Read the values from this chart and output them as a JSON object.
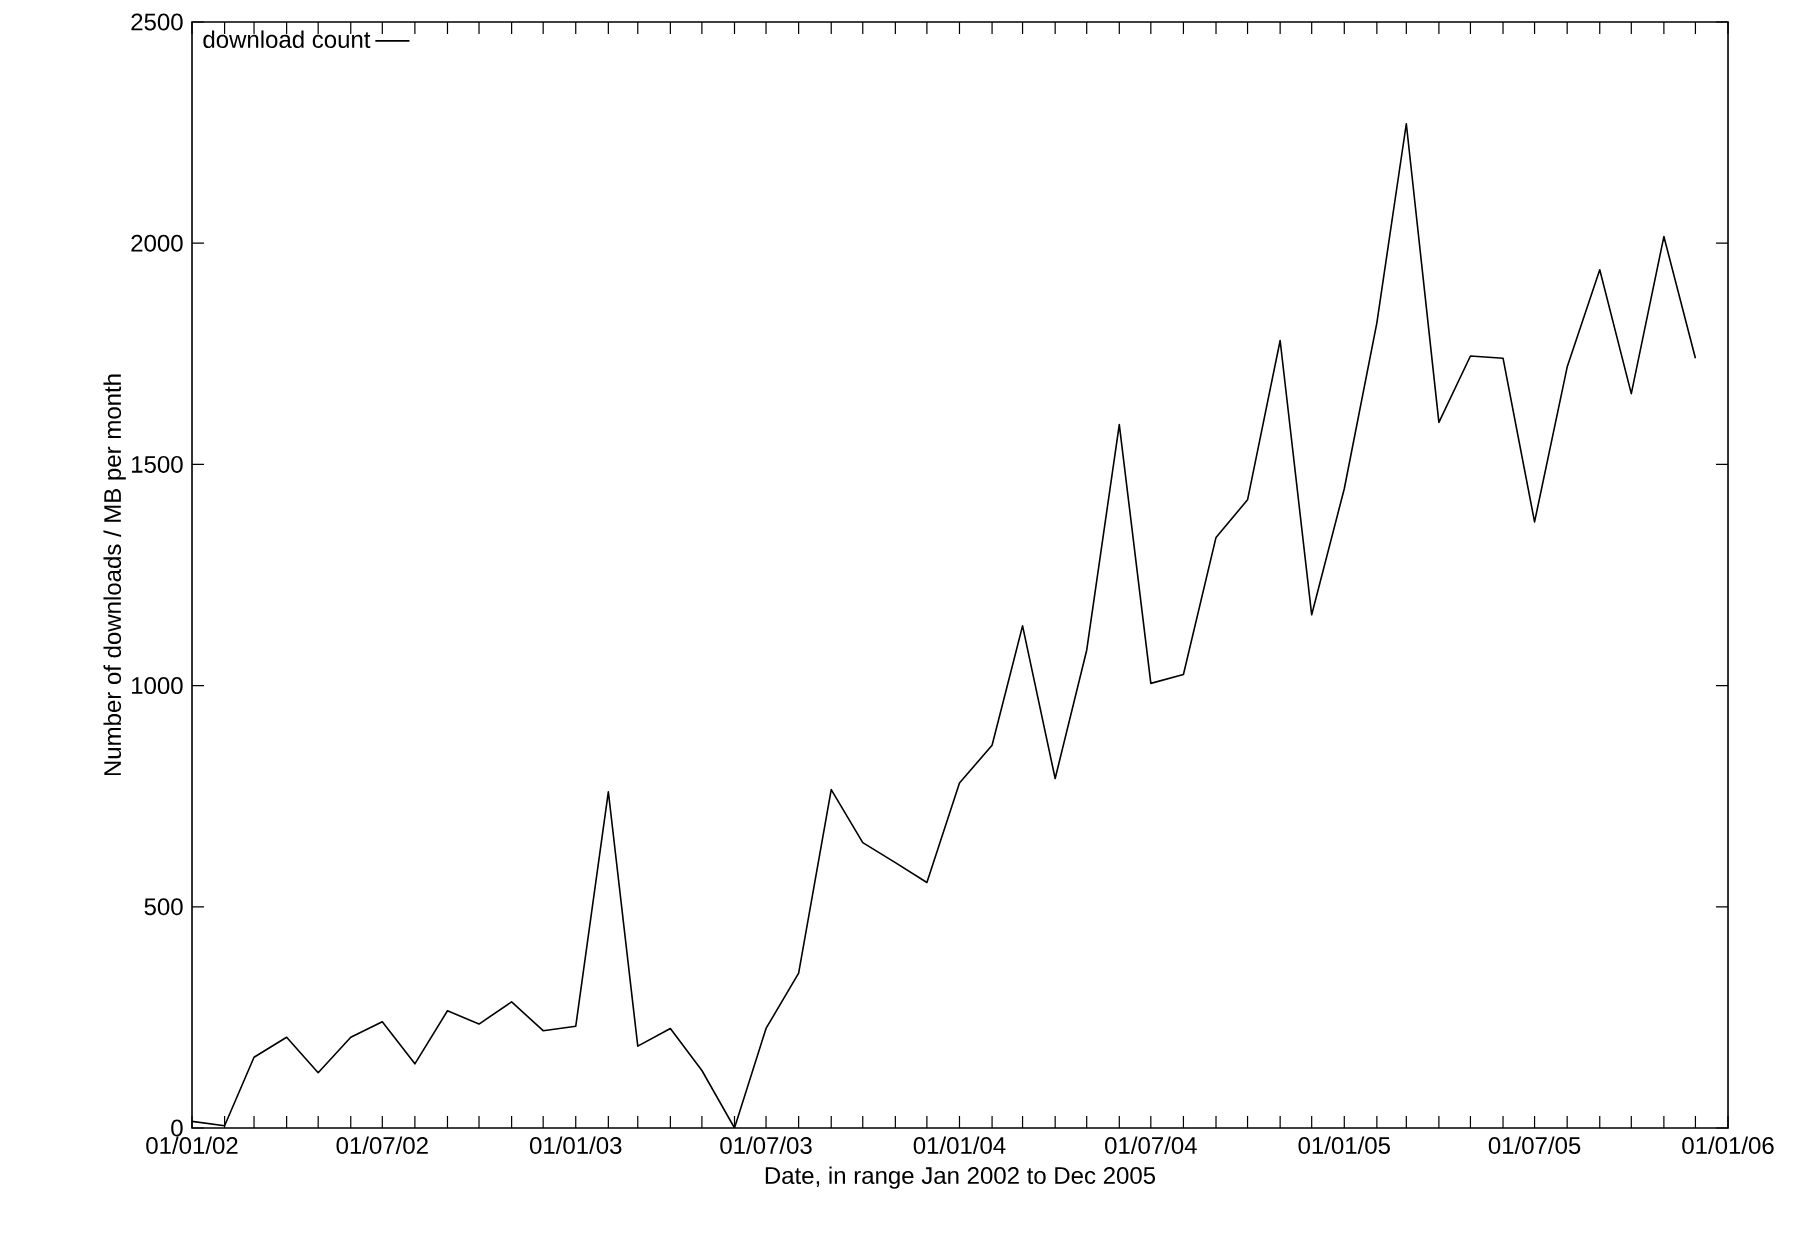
{
  "chart_data": {
    "type": "line",
    "xlabel": "Date, in range Jan 2002 to Dec 2005",
    "ylabel": "Number of downloads / MB per month",
    "x": [
      "2002-01",
      "2002-02",
      "2002-03",
      "2002-04",
      "2002-05",
      "2002-06",
      "2002-07",
      "2002-08",
      "2002-09",
      "2002-10",
      "2002-11",
      "2002-12",
      "2003-01",
      "2003-02",
      "2003-03",
      "2003-04",
      "2003-05",
      "2003-06",
      "2003-07",
      "2003-08",
      "2003-09",
      "2003-10",
      "2003-11",
      "2003-12",
      "2004-01",
      "2004-02",
      "2004-03",
      "2004-04",
      "2004-05",
      "2004-06",
      "2004-07",
      "2004-08",
      "2004-09",
      "2004-10",
      "2004-11",
      "2004-12",
      "2005-01",
      "2005-02",
      "2005-03",
      "2005-04",
      "2005-05",
      "2005-06",
      "2005-07",
      "2005-08",
      "2005-09",
      "2005-10",
      "2005-11",
      "2005-12"
    ],
    "series": [
      {
        "name": "download count",
        "color": "#000000",
        "values": [
          15,
          5,
          160,
          205,
          125,
          205,
          240,
          145,
          265,
          235,
          285,
          220,
          230,
          760,
          185,
          225,
          130,
          0,
          225,
          350,
          765,
          645,
          600,
          555,
          780,
          865,
          1135,
          790,
          1080,
          1590,
          1005,
          1025,
          1335,
          1420,
          1780,
          1160,
          1445,
          1820,
          2270,
          1595,
          1745,
          1740,
          1370,
          1720,
          1940,
          1660,
          2015,
          1740
        ]
      }
    ],
    "xlim": [
      "2002-01",
      "2006-01"
    ],
    "xticks": [
      {
        "value": "2002-01",
        "label": "01/01/02"
      },
      {
        "value": "2002-02",
        "label": null
      },
      {
        "value": "2002-03",
        "label": null
      },
      {
        "value": "2002-04",
        "label": null
      },
      {
        "value": "2002-05",
        "label": null
      },
      {
        "value": "2002-06",
        "label": null
      },
      {
        "value": "2002-07",
        "label": "01/07/02"
      },
      {
        "value": "2002-08",
        "label": null
      },
      {
        "value": "2002-09",
        "label": null
      },
      {
        "value": "2002-10",
        "label": null
      },
      {
        "value": "2002-11",
        "label": null
      },
      {
        "value": "2002-12",
        "label": null
      },
      {
        "value": "2003-01",
        "label": "01/01/03"
      },
      {
        "value": "2003-02",
        "label": null
      },
      {
        "value": "2003-03",
        "label": null
      },
      {
        "value": "2003-04",
        "label": null
      },
      {
        "value": "2003-05",
        "label": null
      },
      {
        "value": "2003-06",
        "label": null
      },
      {
        "value": "2003-07",
        "label": "01/07/03"
      },
      {
        "value": "2003-08",
        "label": null
      },
      {
        "value": "2003-09",
        "label": null
      },
      {
        "value": "2003-10",
        "label": null
      },
      {
        "value": "2003-11",
        "label": null
      },
      {
        "value": "2003-12",
        "label": null
      },
      {
        "value": "2004-01",
        "label": "01/01/04"
      },
      {
        "value": "2004-02",
        "label": null
      },
      {
        "value": "2004-03",
        "label": null
      },
      {
        "value": "2004-04",
        "label": null
      },
      {
        "value": "2004-05",
        "label": null
      },
      {
        "value": "2004-06",
        "label": null
      },
      {
        "value": "2004-07",
        "label": "01/07/04"
      },
      {
        "value": "2004-08",
        "label": null
      },
      {
        "value": "2004-09",
        "label": null
      },
      {
        "value": "2004-10",
        "label": null
      },
      {
        "value": "2004-11",
        "label": null
      },
      {
        "value": "2004-12",
        "label": null
      },
      {
        "value": "2005-01",
        "label": "01/01/05"
      },
      {
        "value": "2005-02",
        "label": null
      },
      {
        "value": "2005-03",
        "label": null
      },
      {
        "value": "2005-04",
        "label": null
      },
      {
        "value": "2005-05",
        "label": null
      },
      {
        "value": "2005-06",
        "label": null
      },
      {
        "value": "2005-07",
        "label": "01/07/05"
      },
      {
        "value": "2005-08",
        "label": null
      },
      {
        "value": "2005-09",
        "label": null
      },
      {
        "value": "2005-10",
        "label": null
      },
      {
        "value": "2005-11",
        "label": null
      },
      {
        "value": "2005-12",
        "label": null
      },
      {
        "value": "2006-01",
        "label": "01/01/06"
      }
    ],
    "ylim": [
      0,
      2500
    ],
    "yticks": [
      0,
      500,
      1000,
      1500,
      2000,
      2500
    ],
    "legend": "top left",
    "grid": false,
    "marker": "none",
    "line_style": "solid"
  }
}
